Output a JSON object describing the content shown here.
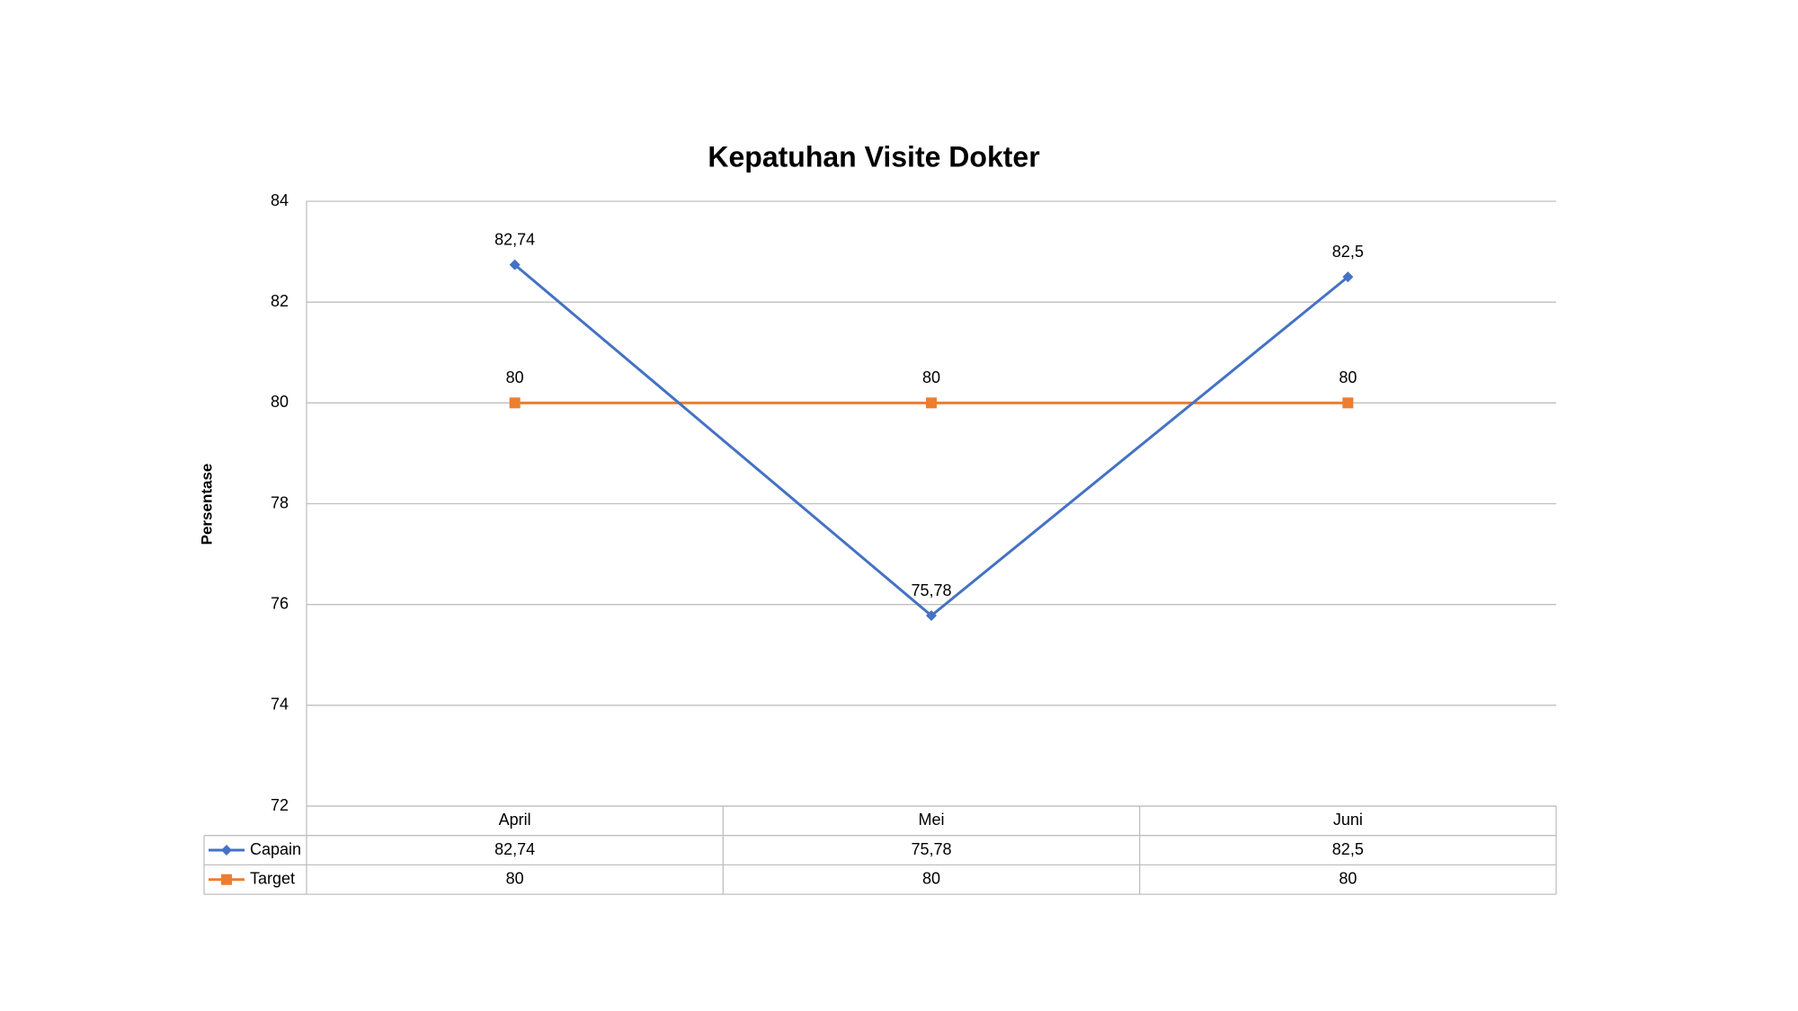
{
  "chart_data": {
    "type": "line",
    "title": "Kepatuhan Visite Dokter",
    "y_label": "Persentase",
    "categories": [
      "April",
      "Mei",
      "Juni"
    ],
    "series": [
      {
        "name": "Capain",
        "color": "#4472c4",
        "marker": "diamond",
        "values": [
          82.74,
          75.78,
          82.5
        ],
        "value_labels": [
          "82,74",
          "75,78",
          "82,5"
        ]
      },
      {
        "name": "Target",
        "color": "#ed7d31",
        "marker": "square",
        "values": [
          80,
          80,
          80
        ],
        "value_labels": [
          "80",
          "80",
          "80"
        ]
      }
    ],
    "ylim": [
      72,
      84
    ],
    "yticks": [
      72,
      74,
      76,
      78,
      80,
      82,
      84
    ],
    "grid": true,
    "data_table": true
  }
}
